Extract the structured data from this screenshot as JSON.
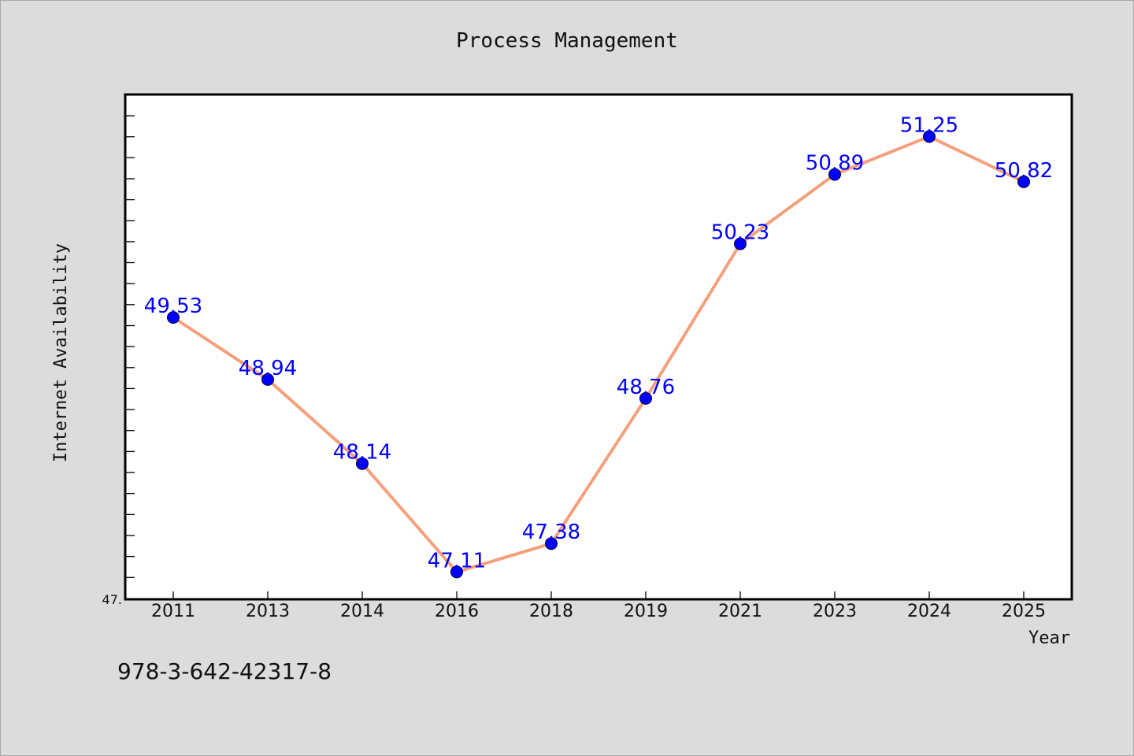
{
  "chart_data": {
    "type": "line",
    "title": "Process Management",
    "xlabel": "Year",
    "ylabel": "Internet Availability",
    "categories": [
      "2011",
      "2013",
      "2014",
      "2016",
      "2018",
      "2019",
      "2021",
      "2023",
      "2024",
      "2025"
    ],
    "series": [
      {
        "values": [
          49.53,
          48.94,
          48.14,
          47.11,
          47.38,
          48.76,
          50.23,
          50.89,
          51.25,
          50.82
        ],
        "value_labels": [
          "49.53",
          "48.94",
          "48.14",
          "47.11",
          "47.38",
          "48.76",
          "50.23",
          "50.89",
          "51.25",
          "50.82"
        ],
        "line_color": "#f4a07c",
        "marker_color": "#0000ff",
        "label_color": "#0000ff"
      }
    ],
    "ylim": [
      46.85,
      51.65
    ],
    "y_min_label": "47.",
    "grid": false,
    "legend": "none"
  },
  "footer": {
    "isbn": "978-3-642-42317-8"
  },
  "colors": {
    "background": "#dcdcdc",
    "plot_background": "#ffffff",
    "axis": "#000000"
  }
}
